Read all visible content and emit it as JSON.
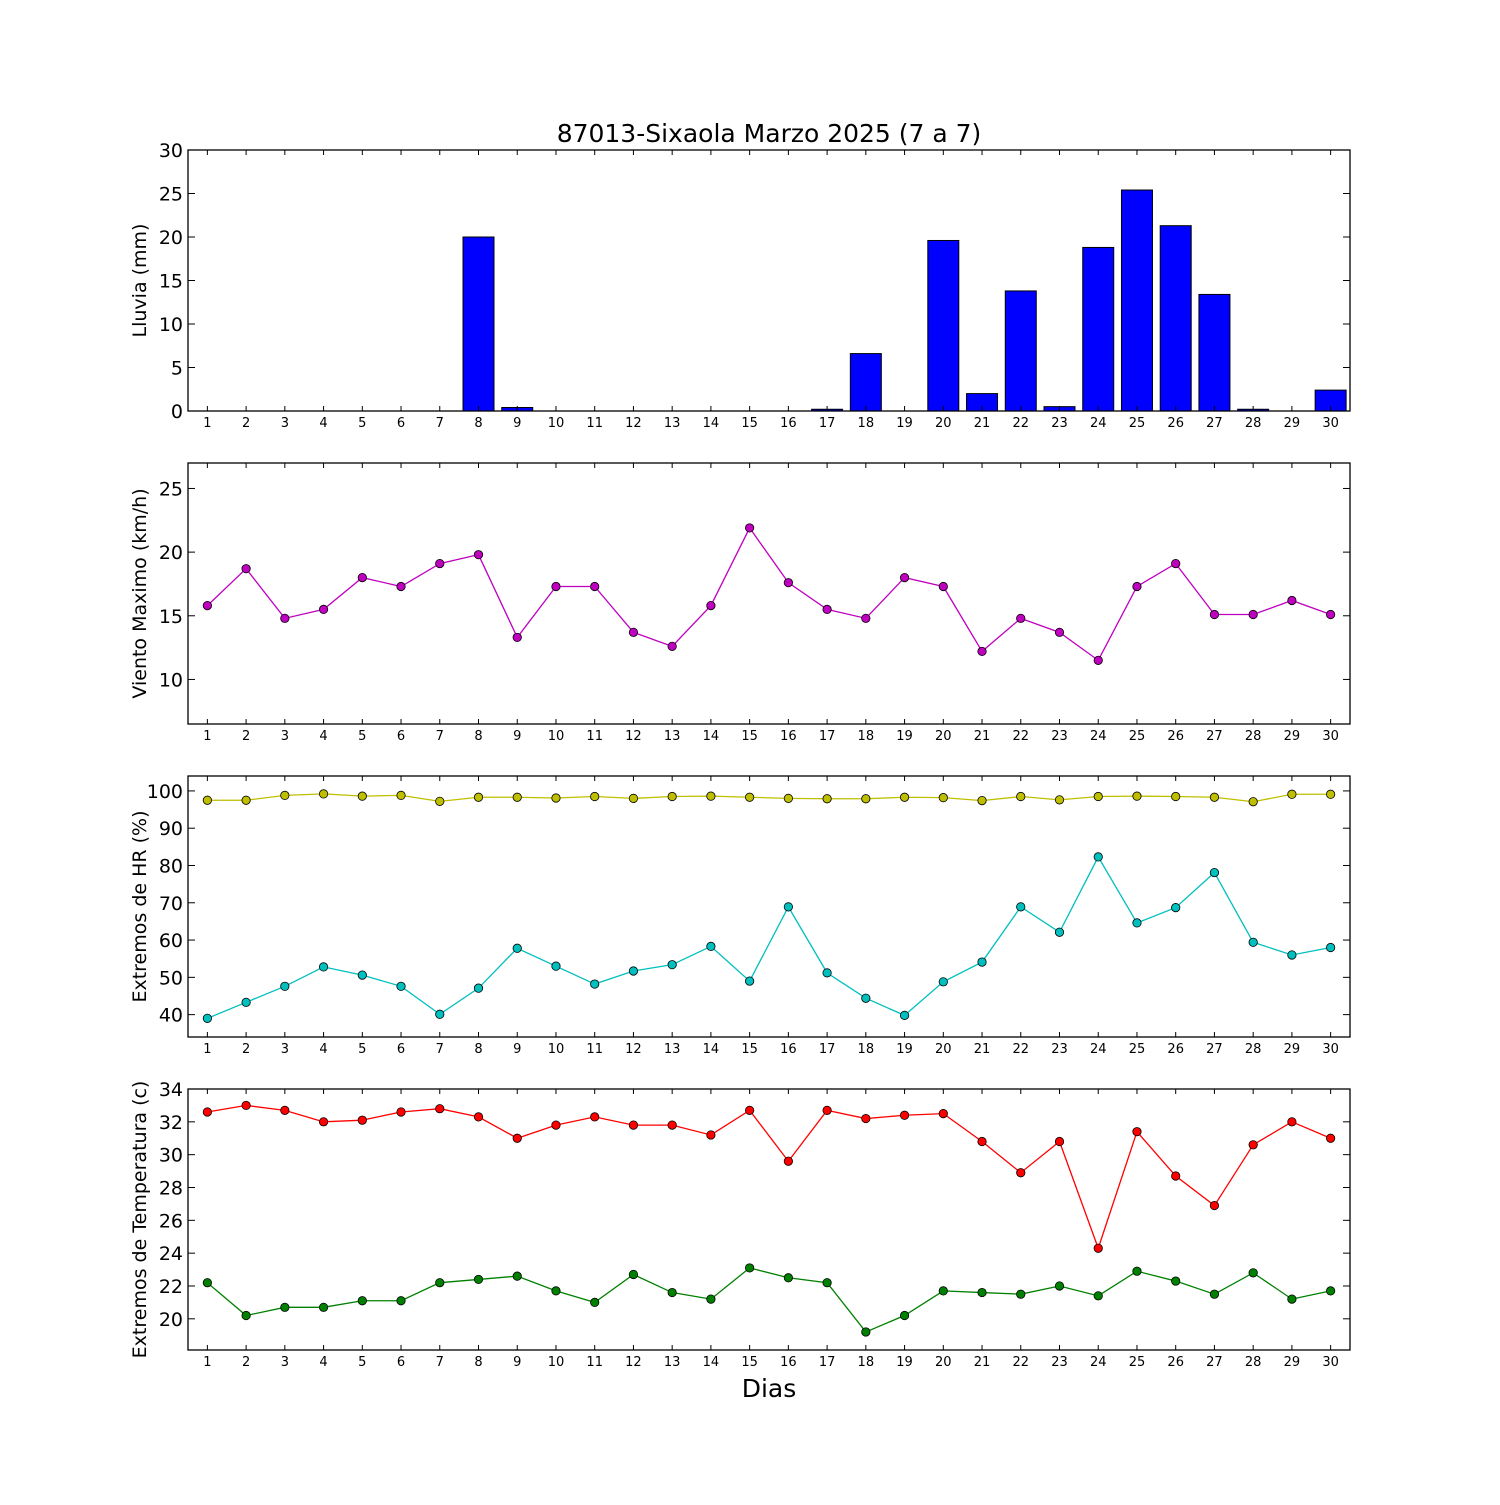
{
  "title": "87013-Sixaola Marzo 2025  (7 a 7)",
  "xlabel": "Dias",
  "days": [
    1,
    2,
    3,
    4,
    5,
    6,
    7,
    8,
    9,
    10,
    11,
    12,
    13,
    14,
    15,
    16,
    17,
    18,
    19,
    20,
    21,
    22,
    23,
    24,
    25,
    26,
    27,
    28,
    29,
    30
  ],
  "chart_data": [
    {
      "type": "bar",
      "ylabel": "Lluvia (mm)",
      "ylim": [
        0,
        30
      ],
      "yticks": [
        0,
        5,
        10,
        15,
        20,
        25,
        30
      ],
      "grid": false,
      "series": [
        {
          "color": "#0000ff",
          "values": [
            0,
            0,
            0,
            0,
            0,
            0,
            0,
            20.0,
            0.4,
            0,
            0,
            0,
            0,
            0,
            0,
            0,
            0.2,
            6.6,
            0,
            19.6,
            2.0,
            13.8,
            0.5,
            18.8,
            25.4,
            21.3,
            13.4,
            0.2,
            0,
            2.4
          ]
        }
      ]
    },
    {
      "type": "line",
      "ylabel": "Viento Maximo (km/h)",
      "ylim": [
        6.5,
        27
      ],
      "yticks": [
        10,
        15,
        20,
        25
      ],
      "grid": false,
      "series": [
        {
          "color": "#bf00bf",
          "values": [
            15.8,
            18.7,
            14.8,
            15.5,
            18.0,
            17.3,
            19.1,
            19.8,
            13.3,
            17.3,
            17.3,
            13.7,
            12.6,
            15.8,
            21.9,
            17.6,
            15.5,
            14.8,
            18.0,
            17.3,
            12.2,
            14.8,
            13.7,
            11.5,
            17.3,
            19.1,
            15.1,
            15.1,
            16.2,
            15.1
          ]
        }
      ]
    },
    {
      "type": "line",
      "ylabel": "Extremos de HR (%)",
      "ylim": [
        34,
        104
      ],
      "yticks": [
        40,
        50,
        60,
        70,
        80,
        90,
        100
      ],
      "grid": false,
      "series": [
        {
          "color": "#bfbf00",
          "values": [
            97.5,
            97.5,
            98.8,
            99.2,
            98.6,
            98.8,
            97.2,
            98.3,
            98.3,
            98.1,
            98.5,
            98.0,
            98.5,
            98.6,
            98.3,
            98.0,
            97.9,
            97.9,
            98.3,
            98.2,
            97.4,
            98.5,
            97.6,
            98.5,
            98.6,
            98.5,
            98.3,
            97.1,
            99.1,
            99.1
          ]
        },
        {
          "color": "#00bfbf",
          "values": [
            39,
            43.3,
            47.6,
            52.8,
            50.6,
            47.6,
            40.1,
            47.1,
            57.8,
            53.0,
            48.2,
            51.7,
            53.4,
            58.3,
            49.0,
            68.9,
            51.2,
            44.4,
            39.8,
            48.8,
            54.1,
            68.9,
            62.1,
            82.3,
            64.6,
            68.7,
            78.1,
            59.4,
            56.0,
            58.0
          ]
        }
      ]
    },
    {
      "type": "line",
      "ylabel": "Extremos de Temperatura (c)",
      "ylim": [
        18.1,
        34
      ],
      "yticks": [
        20,
        22,
        24,
        26,
        28,
        30,
        32,
        34
      ],
      "grid": false,
      "series": [
        {
          "color": "#ff0000",
          "values": [
            32.6,
            33.0,
            32.7,
            32.0,
            32.1,
            32.6,
            32.8,
            32.3,
            31.0,
            31.8,
            32.3,
            31.8,
            31.8,
            31.2,
            32.7,
            29.6,
            32.7,
            32.2,
            32.4,
            32.5,
            30.8,
            28.9,
            30.8,
            24.3,
            31.4,
            28.7,
            26.9,
            30.6,
            32.0,
            31.0
          ]
        },
        {
          "color": "#008000",
          "values": [
            22.2,
            20.2,
            20.7,
            20.7,
            21.1,
            21.1,
            22.2,
            22.4,
            22.6,
            21.7,
            21.0,
            22.7,
            21.6,
            21.2,
            23.1,
            22.5,
            22.2,
            19.2,
            20.2,
            21.7,
            21.6,
            21.5,
            22.0,
            21.4,
            22.9,
            22.3,
            21.5,
            22.8,
            21.2,
            21.7
          ]
        }
      ]
    }
  ]
}
